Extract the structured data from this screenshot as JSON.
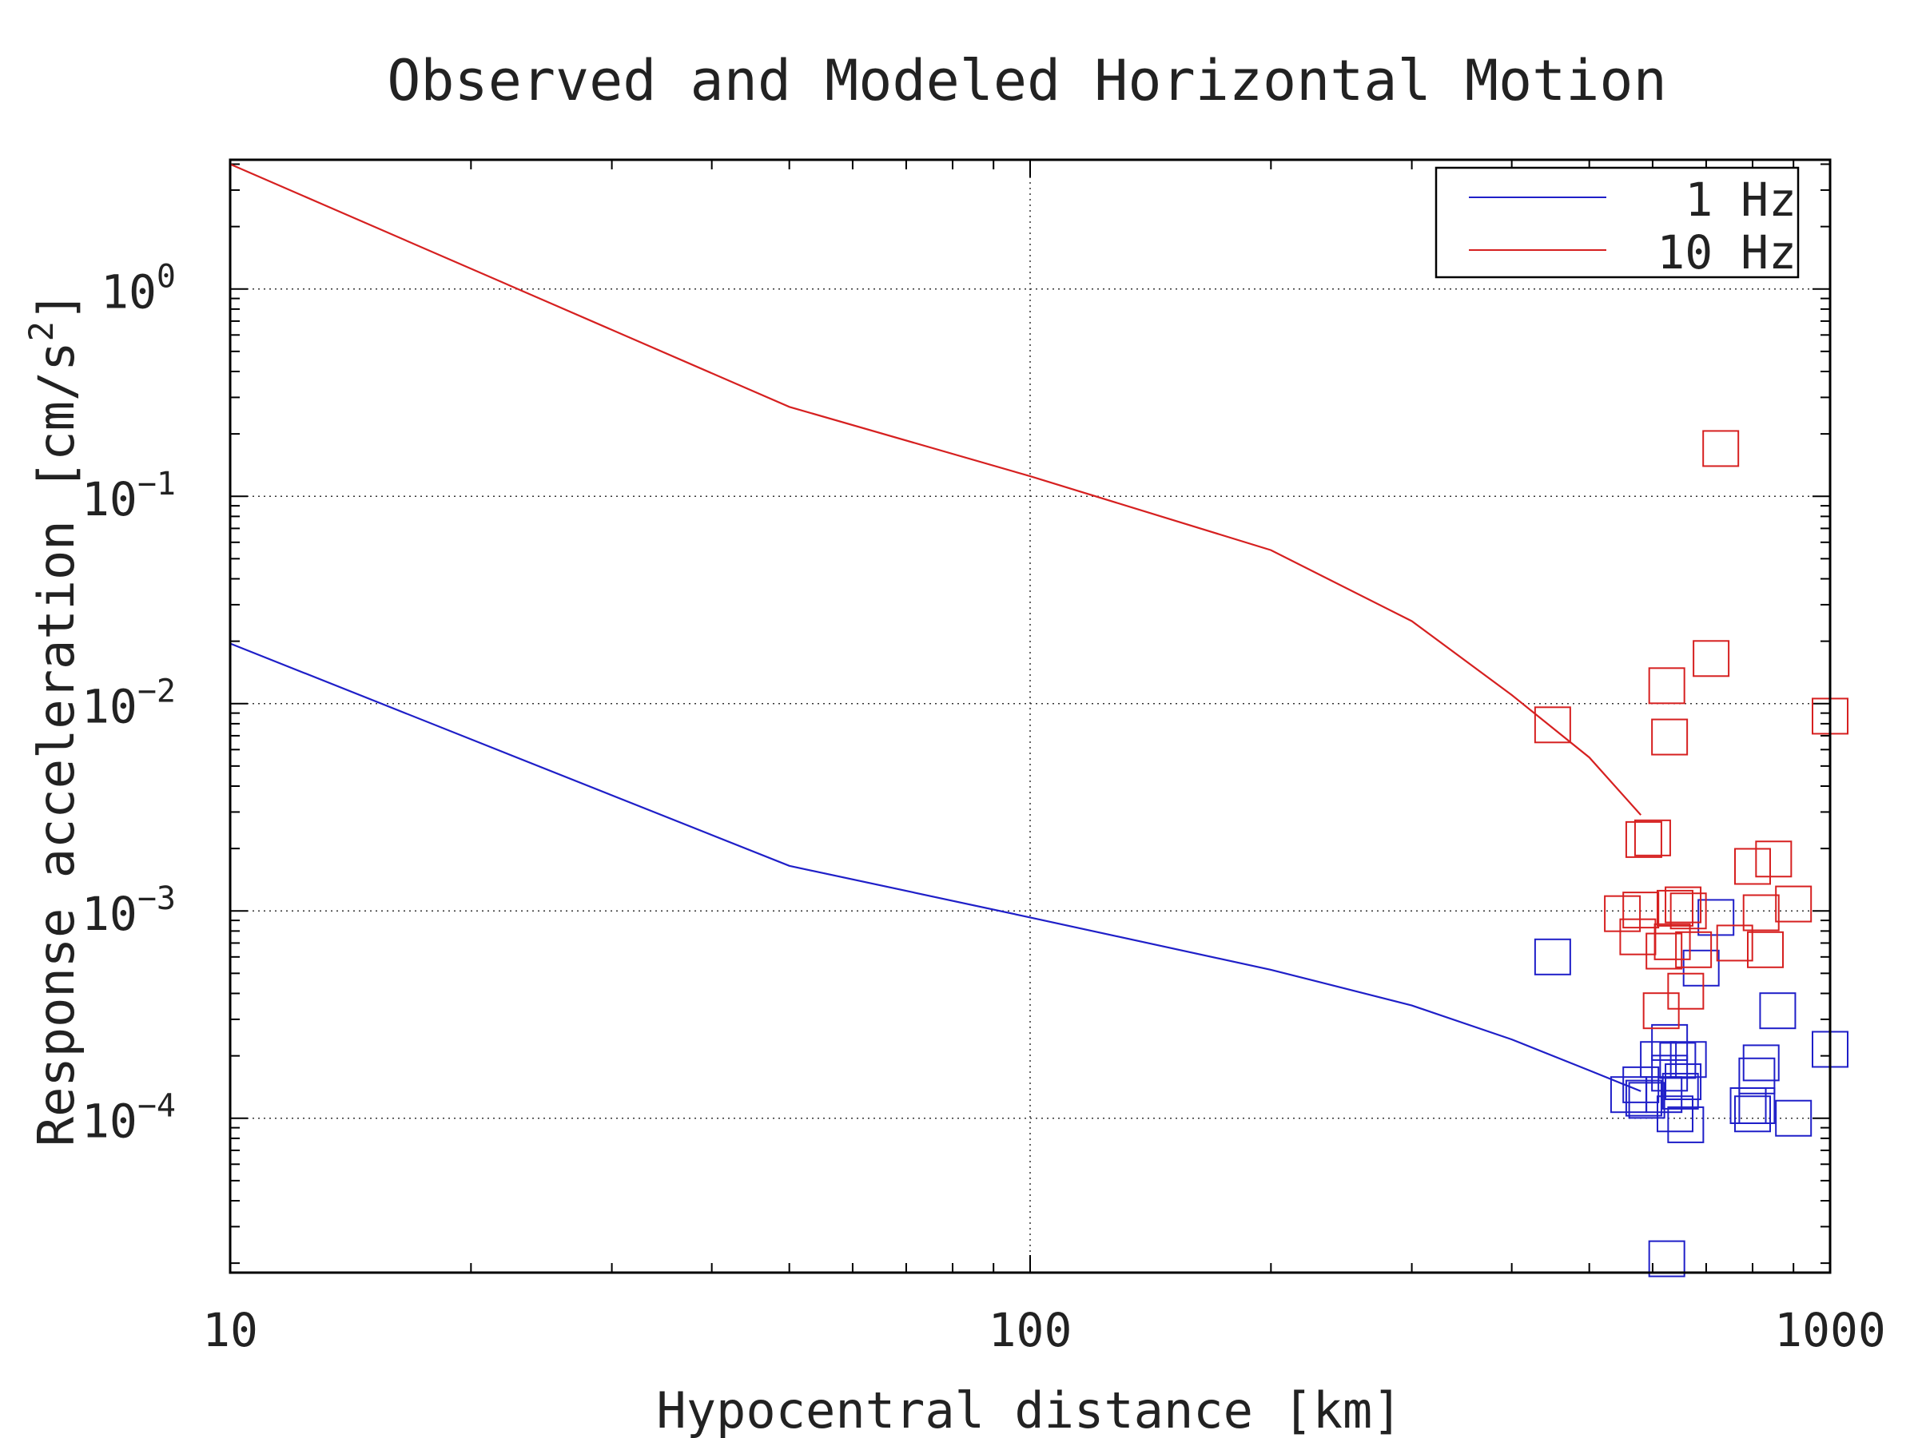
{
  "chart_data": {
    "type": "scatter",
    "title": "Observed and Modeled Horizontal Motion",
    "xlabel": "Hypocentral distance [km]",
    "ylabel": "Response acceleration [cm/s²]",
    "ylabel_main": "Response acceleration [cm/s",
    "ylabel_sup": "2",
    "ylabel_close": "]",
    "xscale": "log",
    "yscale": "log",
    "xlim": [
      10,
      1000
    ],
    "ylim": [
      1.8e-05,
      4.2
    ],
    "x_ticks": [
      {
        "value": 10,
        "label": "10"
      },
      {
        "value": 100,
        "label": "100"
      },
      {
        "value": 1000,
        "label": "1000"
      }
    ],
    "y_ticks": [
      {
        "value": 1,
        "base": "10",
        "exp": "0"
      },
      {
        "value": 0.1,
        "base": "10",
        "exp": "−1"
      },
      {
        "value": 0.01,
        "base": "10",
        "exp": "−2"
      },
      {
        "value": 0.001,
        "base": "10",
        "exp": "−3"
      },
      {
        "value": 0.0001,
        "base": "10",
        "exp": "−4"
      }
    ],
    "grid": true,
    "legend_position": "top-right",
    "series": [
      {
        "name": "1 Hz",
        "color": "#1f1fc8",
        "model_line": [
          [
            10,
            0.0195
          ],
          [
            50,
            0.00165
          ],
          [
            100,
            0.00093
          ],
          [
            200,
            0.00052
          ],
          [
            300,
            0.00035
          ],
          [
            400,
            0.00024
          ],
          [
            500,
            0.00017
          ],
          [
            580,
            0.000135
          ]
        ],
        "observed": [
          [
            450,
            0.0006
          ],
          [
            560,
            0.00013
          ],
          [
            580,
            0.000145
          ],
          [
            585,
            0.000125
          ],
          [
            590,
            0.000122
          ],
          [
            610,
            0.000192
          ],
          [
            620,
            0.00013
          ],
          [
            625,
            2.1e-05
          ],
          [
            630,
            0.000232
          ],
          [
            630,
            0.000165
          ],
          [
            640,
            0.000105
          ],
          [
            645,
            0.00019
          ],
          [
            650,
            0.000135
          ],
          [
            655,
            0.00015
          ],
          [
            660,
            9.3e-05
          ],
          [
            665,
            0.000192
          ],
          [
            690,
            0.00053
          ],
          [
            720,
            0.00093
          ],
          [
            790,
            0.000115
          ],
          [
            800,
            0.000105
          ],
          [
            810,
            0.000115
          ],
          [
            810,
            0.00016
          ],
          [
            820,
            0.000185
          ],
          [
            860,
            0.00033
          ],
          [
            900,
            0.0001
          ],
          [
            1000,
            0.000215
          ]
        ]
      },
      {
        "name": "10 Hz",
        "color": "#d62020",
        "model_line": [
          [
            10,
            4.0
          ],
          [
            50,
            0.27
          ],
          [
            100,
            0.125
          ],
          [
            200,
            0.055
          ],
          [
            300,
            0.025
          ],
          [
            400,
            0.011
          ],
          [
            500,
            0.0055
          ],
          [
            580,
            0.0029
          ]
        ],
        "observed": [
          [
            450,
            0.0079
          ],
          [
            550,
            0.00097
          ],
          [
            575,
            0.00075
          ],
          [
            580,
            0.00101
          ],
          [
            585,
            0.00221
          ],
          [
            600,
            0.00225
          ],
          [
            615,
            0.00033
          ],
          [
            620,
            0.00064
          ],
          [
            625,
            0.0122
          ],
          [
            630,
            0.0069
          ],
          [
            635,
            0.00071
          ],
          [
            640,
            0.00103
          ],
          [
            655,
            0.00107
          ],
          [
            660,
            0.00041
          ],
          [
            665,
            0.001
          ],
          [
            675,
            0.00065
          ],
          [
            710,
            0.0165
          ],
          [
            730,
            0.17
          ],
          [
            760,
            0.0007
          ],
          [
            800,
            0.00164
          ],
          [
            820,
            0.00098
          ],
          [
            830,
            0.00065
          ],
          [
            850,
            0.00178
          ],
          [
            900,
            0.00108
          ],
          [
            1000,
            0.0087
          ]
        ]
      }
    ]
  }
}
